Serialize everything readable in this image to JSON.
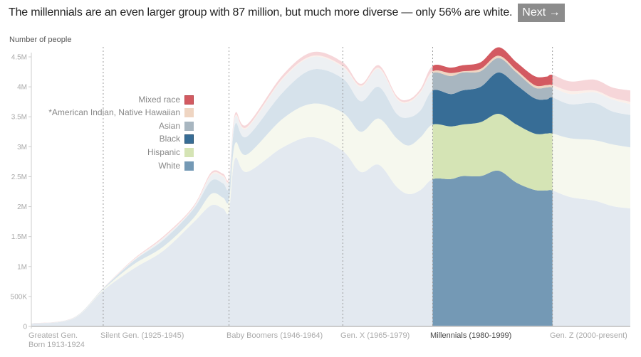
{
  "header": {
    "headline": "The millennials are an even larger group with 87 million, but much more diverse — only 56% are white.",
    "next_label": "Next →"
  },
  "chart_data": {
    "type": "area",
    "stacked": true,
    "ylabel": "Number of people",
    "ylim": [
      0,
      4500000
    ],
    "yticks": [
      0,
      500000,
      1000000,
      1500000,
      2000000,
      2500000,
      3000000,
      3500000,
      4000000,
      4500000
    ],
    "ytick_labels": [
      "0",
      "500K",
      "1M",
      "1.5M",
      "2M",
      "2.5M",
      "3M",
      "3.5M",
      "4M",
      "4.5M"
    ],
    "xlim": [
      1913,
      2013
    ],
    "generations": [
      {
        "label": "Greatest Gen.",
        "label2": "Born 1913-1924",
        "start": 1913,
        "end": 1924
      },
      {
        "label": "Silent Gen. (1925-1945)",
        "start": 1925,
        "end": 1945
      },
      {
        "label": "Baby Boomers (1946-1964)",
        "start": 1946,
        "end": 1964
      },
      {
        "label": "Gen. X (1965-1979)",
        "start": 1965,
        "end": 1979
      },
      {
        "label": "Millennials (1980-1999)",
        "start": 1980,
        "end": 1999,
        "highlighted": true
      },
      {
        "label": "Gen. Z (2000-present)",
        "start": 2000,
        "end": 2013
      }
    ],
    "highlight_range": [
      1980,
      2000
    ],
    "legend_placement": "left",
    "x": [
      1913,
      1920,
      1925,
      1930,
      1935,
      1940,
      1943,
      1945,
      1946,
      1947,
      1949,
      1955,
      1960,
      1965,
      1968,
      1971,
      1974,
      1976,
      1978,
      1980,
      1983,
      1985,
      1988,
      1991,
      1994,
      1997,
      1999,
      2000,
      2003,
      2007,
      2010,
      2013
    ],
    "series": [
      {
        "name": "White",
        "color": "#7499b5",
        "faded_color": "#e3e9f0",
        "values": [
          45000,
          130000,
          600000,
          960000,
          1260000,
          1730000,
          2020000,
          1970000,
          1930000,
          2800000,
          2580000,
          2990000,
          3160000,
          2930000,
          2580000,
          2700000,
          2330000,
          2210000,
          2280000,
          2460000,
          2460000,
          2510000,
          2510000,
          2600000,
          2400000,
          2280000,
          2270000,
          2270000,
          2160000,
          2100000,
          2010000,
          1970000
        ]
      },
      {
        "name": "Hispanic",
        "color": "#d5e4b5",
        "faded_color": "#f6f8ee",
        "values": [
          2000,
          5000,
          20000,
          70000,
          70000,
          70000,
          190000,
          180000,
          180000,
          250000,
          290000,
          480000,
          560000,
          640000,
          670000,
          770000,
          810000,
          810000,
          880000,
          910000,
          880000,
          860000,
          900000,
          950000,
          970000,
          940000,
          950000,
          950000,
          980000,
          1010000,
          1030000,
          1020000
        ]
      },
      {
        "name": "Black",
        "color": "#376d96",
        "faded_color": "#d6e2eb",
        "values": [
          2000,
          5000,
          15000,
          60000,
          110000,
          150000,
          220000,
          240000,
          230000,
          320000,
          300000,
          440000,
          570000,
          570000,
          510000,
          530000,
          410000,
          470000,
          450000,
          570000,
          540000,
          570000,
          590000,
          690000,
          660000,
          590000,
          570000,
          600000,
          570000,
          620000,
          550000,
          540000
        ]
      },
      {
        "name": "Asian",
        "color": "#a8b6c0",
        "faded_color": "#edf0f3",
        "values": [
          500,
          2000,
          3000,
          10000,
          30000,
          20000,
          90000,
          110000,
          110000,
          120000,
          140000,
          220000,
          210000,
          190000,
          240000,
          300000,
          250000,
          250000,
          300000,
          290000,
          300000,
          300000,
          260000,
          240000,
          210000,
          180000,
          200000,
          170000,
          170000,
          180000,
          200000,
          180000
        ]
      },
      {
        "name": "*American Indian, Native Hawaiian",
        "color": "#efd5c2",
        "faded_color": "#fbefe9",
        "values": [
          500,
          1000,
          2000,
          10000,
          10000,
          10000,
          20000,
          20000,
          20000,
          20000,
          20000,
          20000,
          20000,
          20000,
          20000,
          20000,
          20000,
          20000,
          20000,
          30000,
          50000,
          20000,
          40000,
          40000,
          40000,
          40000,
          40000,
          40000,
          50000,
          30000,
          30000,
          40000
        ]
      },
      {
        "name": "Mixed race",
        "color": "#d35a61",
        "faded_color": "#f6d6d9",
        "values": [
          1000,
          2000,
          3000,
          10000,
          20000,
          20000,
          30000,
          30000,
          30000,
          40000,
          40000,
          50000,
          60000,
          60000,
          30000,
          40000,
          30000,
          30000,
          40000,
          90000,
          90000,
          100000,
          110000,
          140000,
          130000,
          150000,
          140000,
          170000,
          160000,
          180000,
          170000,
          190000
        ]
      }
    ]
  }
}
